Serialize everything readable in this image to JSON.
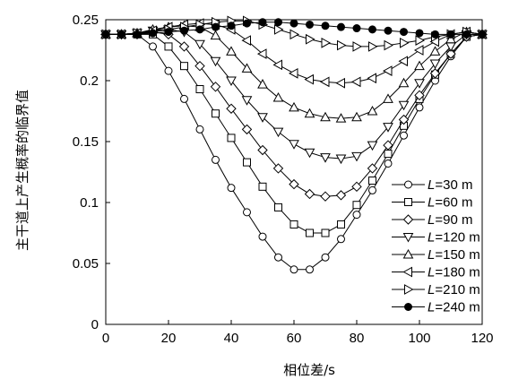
{
  "chart_data": {
    "type": "line",
    "xlabel": "相位差/s",
    "ylabel": "主干道上产生概率的临界值",
    "xlim": [
      0,
      120
    ],
    "ylim": [
      0,
      0.25
    ],
    "xticks": [
      "0",
      "20",
      "40",
      "60",
      "80",
      "100",
      "120"
    ],
    "yticks": [
      "0",
      "0.05",
      "0.1",
      "0.15",
      "0.2",
      "0.25"
    ],
    "grid": false,
    "legend_position": "right",
    "x": [
      0,
      5,
      10,
      15,
      20,
      25,
      30,
      35,
      40,
      45,
      50,
      55,
      60,
      65,
      70,
      75,
      80,
      85,
      90,
      95,
      100,
      105,
      110,
      115,
      120
    ],
    "series": [
      {
        "name": "L=30 m",
        "legend_prefix": "L",
        "legend_suffix": "=30 m",
        "marker": "circle-open",
        "values": [
          0.238,
          0.238,
          0.238,
          0.228,
          0.208,
          0.185,
          0.16,
          0.135,
          0.112,
          0.092,
          0.072,
          0.055,
          0.045,
          0.045,
          0.055,
          0.07,
          0.09,
          0.11,
          0.132,
          0.155,
          0.178,
          0.2,
          0.22,
          0.236,
          0.238
        ]
      },
      {
        "name": "L=60 m",
        "legend_prefix": "L",
        "legend_suffix": "=60 m",
        "marker": "square-open",
        "values": [
          0.238,
          0.238,
          0.238,
          0.238,
          0.228,
          0.212,
          0.193,
          0.173,
          0.153,
          0.133,
          0.113,
          0.096,
          0.082,
          0.075,
          0.075,
          0.082,
          0.098,
          0.118,
          0.14,
          0.163,
          0.185,
          0.205,
          0.222,
          0.236,
          0.238
        ]
      },
      {
        "name": "L=90 m",
        "legend_prefix": "L",
        "legend_suffix": "=90 m",
        "marker": "diamond-open",
        "values": [
          0.238,
          0.238,
          0.238,
          0.24,
          0.238,
          0.228,
          0.212,
          0.195,
          0.177,
          0.16,
          0.143,
          0.128,
          0.115,
          0.107,
          0.105,
          0.106,
          0.113,
          0.128,
          0.147,
          0.168,
          0.188,
          0.206,
          0.222,
          0.236,
          0.238
        ]
      },
      {
        "name": "L=120 m",
        "legend_prefix": "L",
        "legend_suffix": "=120 m",
        "marker": "triangle-down-open",
        "values": [
          0.238,
          0.238,
          0.239,
          0.241,
          0.242,
          0.24,
          0.23,
          0.216,
          0.2,
          0.184,
          0.17,
          0.158,
          0.148,
          0.141,
          0.137,
          0.136,
          0.138,
          0.147,
          0.162,
          0.18,
          0.198,
          0.214,
          0.228,
          0.238,
          0.238
        ]
      },
      {
        "name": "L=150 m",
        "legend_prefix": "L",
        "legend_suffix": "=150 m",
        "marker": "triangle-up-open",
        "values": [
          0.238,
          0.238,
          0.239,
          0.242,
          0.244,
          0.245,
          0.244,
          0.237,
          0.224,
          0.21,
          0.197,
          0.186,
          0.178,
          0.173,
          0.17,
          0.169,
          0.17,
          0.175,
          0.185,
          0.198,
          0.212,
          0.224,
          0.234,
          0.24,
          0.238
        ]
      },
      {
        "name": "L=180 m",
        "legend_prefix": "L",
        "legend_suffix": "=180 m",
        "marker": "triangle-left-open",
        "values": [
          0.238,
          0.238,
          0.239,
          0.241,
          0.244,
          0.246,
          0.247,
          0.246,
          0.242,
          0.233,
          0.222,
          0.213,
          0.206,
          0.201,
          0.199,
          0.198,
          0.199,
          0.202,
          0.208,
          0.216,
          0.225,
          0.232,
          0.238,
          0.24,
          0.238
        ]
      },
      {
        "name": "L=210 m",
        "legend_prefix": "L",
        "legend_suffix": "=210 m",
        "marker": "triangle-right-open",
        "values": [
          0.238,
          0.238,
          0.239,
          0.24,
          0.242,
          0.244,
          0.246,
          0.248,
          0.249,
          0.249,
          0.246,
          0.242,
          0.238,
          0.234,
          0.231,
          0.229,
          0.228,
          0.228,
          0.229,
          0.231,
          0.233,
          0.236,
          0.238,
          0.24,
          0.238
        ]
      },
      {
        "name": "L=240 m",
        "legend_prefix": "L",
        "legend_suffix": "=240 m",
        "marker": "circle-filled",
        "values": [
          0.238,
          0.238,
          0.238,
          0.239,
          0.24,
          0.241,
          0.242,
          0.244,
          0.245,
          0.247,
          0.248,
          0.248,
          0.247,
          0.246,
          0.245,
          0.244,
          0.243,
          0.242,
          0.241,
          0.24,
          0.239,
          0.238,
          0.238,
          0.238,
          0.238
        ]
      }
    ]
  }
}
